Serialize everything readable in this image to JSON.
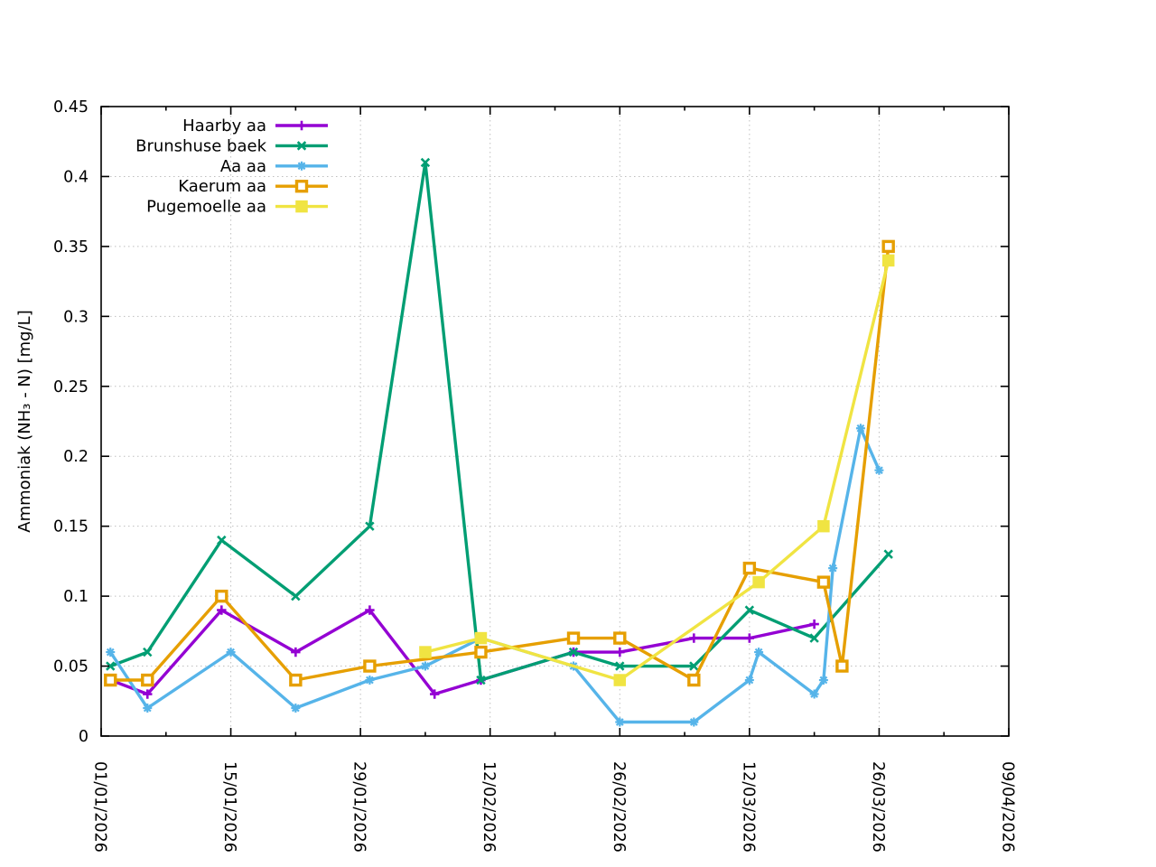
{
  "chart_data": {
    "type": "line",
    "title": "",
    "xlabel": "",
    "ylabel": "Ammoniak (NH₃ - N) [mg/L]",
    "ylim": [
      0,
      0.45
    ],
    "ytick_step": 0.05,
    "ytick_labels": [
      "0",
      "0.05",
      "0.1",
      "0.15",
      "0.2",
      "0.25",
      "0.3",
      "0.35",
      "0.4",
      "0.45"
    ],
    "x_start_date": "01/01/2026",
    "x_end_date": "09/04/2026",
    "x_range_days": 98,
    "x_major_tick_interval_days": 14,
    "x_minor_tick_interval_days": 7,
    "x_tick_labels": [
      "01/01/2026",
      "15/01/2026",
      "29/01/2026",
      "12/02/2026",
      "26/02/2026",
      "12/03/2026",
      "26/03/2026",
      "09/04/2026"
    ],
    "grid": "dotted",
    "grid_color": "#bfbfbf",
    "axis_color": "#000000",
    "legend_position": "top-left-inside",
    "series": [
      {
        "name": "Haarby aa",
        "color": "#9400d3",
        "marker": "plus",
        "points": [
          [
            "02/01/2026",
            0.04
          ],
          [
            "06/01/2026",
            0.03
          ],
          [
            "14/01/2026",
            0.09
          ],
          [
            "22/01/2026",
            0.06
          ],
          [
            "30/01/2026",
            0.09
          ],
          [
            "06/02/2026",
            0.03
          ],
          [
            "11/02/2026",
            0.04
          ],
          [
            "21/02/2026",
            0.06
          ],
          [
            "26/02/2026",
            0.06
          ],
          [
            "06/03/2026",
            0.07
          ],
          [
            "12/03/2026",
            0.07
          ],
          [
            "19/03/2026",
            0.08
          ]
        ]
      },
      {
        "name": "Brunshuse baek",
        "color": "#009e73",
        "marker": "cross",
        "points": [
          [
            "02/01/2026",
            0.05
          ],
          [
            "06/01/2026",
            0.06
          ],
          [
            "14/01/2026",
            0.14
          ],
          [
            "22/01/2026",
            0.1
          ],
          [
            "30/01/2026",
            0.15
          ],
          [
            "05/02/2026",
            0.41
          ],
          [
            "11/02/2026",
            0.04
          ],
          [
            "21/02/2026",
            0.06
          ],
          [
            "26/02/2026",
            0.05
          ],
          [
            "06/03/2026",
            0.05
          ],
          [
            "12/03/2026",
            0.09
          ],
          [
            "19/03/2026",
            0.07
          ],
          [
            "27/03/2026",
            0.13
          ]
        ]
      },
      {
        "name": "Aa aa",
        "color": "#56b4e9",
        "marker": "asterisk",
        "points": [
          [
            "02/01/2026",
            0.06
          ],
          [
            "06/01/2026",
            0.02
          ],
          [
            "15/01/2026",
            0.06
          ],
          [
            "22/01/2026",
            0.02
          ],
          [
            "30/01/2026",
            0.04
          ],
          [
            "05/02/2026",
            0.05
          ],
          [
            "11/02/2026",
            0.07
          ],
          [
            "21/02/2026",
            0.05
          ],
          [
            "26/02/2026",
            0.01
          ],
          [
            "06/03/2026",
            0.01
          ],
          [
            "12/03/2026",
            0.04
          ],
          [
            "13/03/2026",
            0.06
          ],
          [
            "19/03/2026",
            0.03
          ],
          [
            "20/03/2026",
            0.04
          ],
          [
            "21/03/2026",
            0.12
          ],
          [
            "24/03/2026",
            0.22
          ],
          [
            "26/03/2026",
            0.19
          ]
        ]
      },
      {
        "name": "Kaerum aa",
        "color": "#e69f00",
        "marker": "square-open",
        "points": [
          [
            "02/01/2026",
            0.04
          ],
          [
            "06/01/2026",
            0.04
          ],
          [
            "14/01/2026",
            0.1
          ],
          [
            "22/01/2026",
            0.04
          ],
          [
            "30/01/2026",
            0.05
          ],
          [
            "11/02/2026",
            0.06
          ],
          [
            "21/02/2026",
            0.07
          ],
          [
            "26/02/2026",
            0.07
          ],
          [
            "06/03/2026",
            0.04
          ],
          [
            "12/03/2026",
            0.12
          ],
          [
            "20/03/2026",
            0.11
          ],
          [
            "22/03/2026",
            0.05
          ],
          [
            "27/03/2026",
            0.35
          ]
        ]
      },
      {
        "name": "Pugemoelle aa",
        "color": "#f0e442",
        "marker": "square-filled",
        "points": [
          [
            "05/02/2026",
            0.06
          ],
          [
            "11/02/2026",
            0.07
          ],
          [
            "26/02/2026",
            0.04
          ],
          [
            "13/03/2026",
            0.11
          ],
          [
            "20/03/2026",
            0.15
          ],
          [
            "27/03/2026",
            0.34
          ]
        ]
      }
    ]
  }
}
